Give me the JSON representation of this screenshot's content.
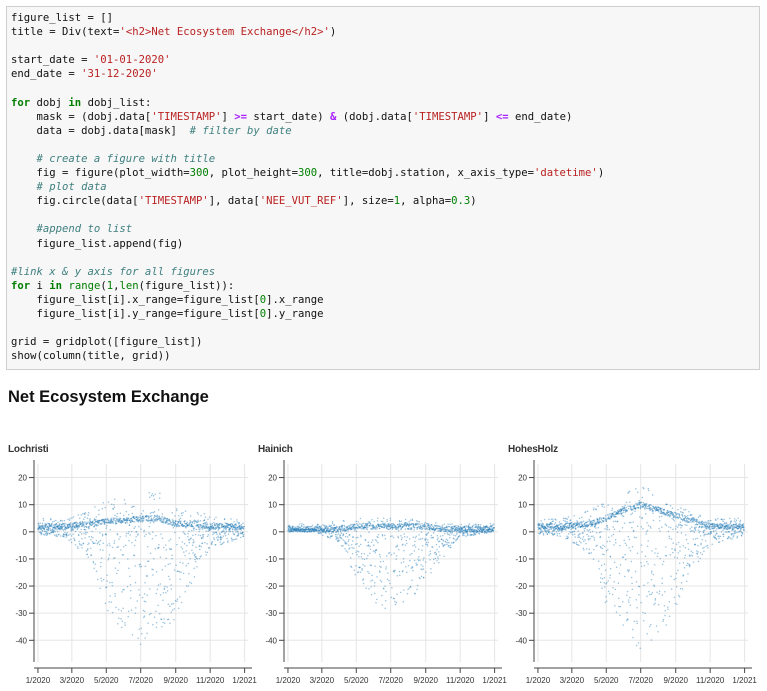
{
  "code_cell": {
    "lines": [
      [
        [
          "figure_list = []",
          ""
        ]
      ],
      [
        [
          "title = Div(text=",
          ""
        ],
        [
          "'<h2>Net Ecosystem Exchange</h2>'",
          "str"
        ],
        [
          ")",
          ""
        ]
      ],
      [
        [
          "",
          ""
        ]
      ],
      [
        [
          "start_date = ",
          ""
        ],
        [
          "'01-01-2020'",
          "str"
        ]
      ],
      [
        [
          "end_date = ",
          ""
        ],
        [
          "'31-12-2020'",
          "str"
        ]
      ],
      [
        [
          "",
          ""
        ]
      ],
      [
        [
          "for",
          "kw"
        ],
        [
          " dobj ",
          ""
        ],
        [
          "in",
          "kw"
        ],
        [
          " dobj_list:",
          ""
        ]
      ],
      [
        [
          "    mask = (dobj.data[",
          ""
        ],
        [
          "'TIMESTAMP'",
          "str"
        ],
        [
          "] ",
          ""
        ],
        [
          ">=",
          "op"
        ],
        [
          " start_date) ",
          ""
        ],
        [
          "&",
          "op"
        ],
        [
          " (dobj.data[",
          ""
        ],
        [
          "'TIMESTAMP'",
          "str"
        ],
        [
          "] ",
          ""
        ],
        [
          "<=",
          "op"
        ],
        [
          " end_date)",
          ""
        ]
      ],
      [
        [
          "    data = dobj.data[mask]  ",
          ""
        ],
        [
          "# filter by date",
          "cm"
        ]
      ],
      [
        [
          "",
          ""
        ]
      ],
      [
        [
          "    ",
          ""
        ],
        [
          "# create a figure with title",
          "cm"
        ]
      ],
      [
        [
          "    fig = figure(plot_width=",
          ""
        ],
        [
          "300",
          "num"
        ],
        [
          ", plot_height=",
          ""
        ],
        [
          "300",
          "num"
        ],
        [
          ", title=dobj.station, x_axis_type=",
          ""
        ],
        [
          "'datetime'",
          "str"
        ],
        [
          ")",
          ""
        ]
      ],
      [
        [
          "    ",
          ""
        ],
        [
          "# plot data",
          "cm"
        ]
      ],
      [
        [
          "    fig.circle(data[",
          ""
        ],
        [
          "'TIMESTAMP'",
          "str"
        ],
        [
          "], data[",
          ""
        ],
        [
          "'NEE_VUT_REF'",
          "str"
        ],
        [
          "], size=",
          ""
        ],
        [
          "1",
          "num"
        ],
        [
          ", alpha=",
          ""
        ],
        [
          "0.3",
          "num"
        ],
        [
          ")",
          ""
        ]
      ],
      [
        [
          "",
          ""
        ]
      ],
      [
        [
          "    ",
          ""
        ],
        [
          "#append to list",
          "cm"
        ]
      ],
      [
        [
          "    figure_list.append(fig)",
          ""
        ]
      ],
      [
        [
          "",
          ""
        ]
      ],
      [
        [
          "#link x & y axis for all figures",
          "cm"
        ]
      ],
      [
        [
          "for",
          "kw"
        ],
        [
          " i ",
          ""
        ],
        [
          "in",
          "kw"
        ],
        [
          " ",
          ""
        ],
        [
          "range",
          "num"
        ],
        [
          "(",
          ""
        ],
        [
          "1",
          "num"
        ],
        [
          ",",
          ""
        ],
        [
          "len",
          "num"
        ],
        [
          "(figure_list)):",
          ""
        ]
      ],
      [
        [
          "    figure_list[i].x_range=figure_list[",
          ""
        ],
        [
          "0",
          "num"
        ],
        [
          "].x_range",
          ""
        ]
      ],
      [
        [
          "    figure_list[i].y_range=figure_list[",
          ""
        ],
        [
          "0",
          "num"
        ],
        [
          "].y_range",
          ""
        ]
      ],
      [
        [
          "",
          ""
        ]
      ],
      [
        [
          "grid = gridplot([figure_list])",
          ""
        ]
      ],
      [
        [
          "show(column(title, grid))",
          ""
        ]
      ]
    ]
  },
  "output": {
    "title": "Net Ecosystem Exchange"
  },
  "theme": {
    "point_color": "#1f77b4",
    "grid_color": "#e5e5e5",
    "axis_color": "#444444"
  },
  "chart_data": [
    {
      "type": "scatter",
      "title": "Lochristi",
      "xlabel": "",
      "ylabel": "",
      "x_ticks": [
        "1/2020",
        "3/2020",
        "5/2020",
        "7/2020",
        "9/2020",
        "11/2020",
        "1/2021"
      ],
      "y_ticks": [
        20,
        10,
        0,
        -10,
        -20,
        -30,
        -40
      ],
      "xlim": [
        "2019-12-25",
        "2021-01-07"
      ],
      "ylim": [
        -48,
        25
      ],
      "grid": true,
      "profile": {
        "x": [
          "2020-01-01",
          "2020-02-15",
          "2020-04-01",
          "2020-05-01",
          "2020-06-01",
          "2020-07-01",
          "2020-08-01",
          "2020-09-01",
          "2020-10-01",
          "2020-11-01",
          "2020-12-31"
        ],
        "baseline": [
          2,
          2,
          3,
          4,
          4,
          5,
          5,
          3,
          3,
          2,
          2
        ],
        "max": [
          5,
          5,
          8,
          12,
          12,
          14,
          15,
          10,
          8,
          6,
          5
        ],
        "min": [
          -1,
          -2,
          -10,
          -30,
          -36,
          -42,
          -38,
          -32,
          -18,
          -6,
          -2
        ]
      }
    },
    {
      "type": "scatter",
      "title": "Hainich",
      "xlabel": "",
      "ylabel": "",
      "x_ticks": [
        "1/2020",
        "3/2020",
        "5/2020",
        "7/2020",
        "9/2020",
        "11/2020",
        "1/2021"
      ],
      "y_ticks": [
        20,
        10,
        0,
        -10,
        -20,
        -30,
        -40
      ],
      "xlim": [
        "2019-12-25",
        "2021-01-07"
      ],
      "ylim": [
        -48,
        25
      ],
      "grid": true,
      "profile": {
        "x": [
          "2020-01-01",
          "2020-02-15",
          "2020-04-01",
          "2020-05-01",
          "2020-06-01",
          "2020-07-01",
          "2020-08-01",
          "2020-09-01",
          "2020-10-01",
          "2020-11-01",
          "2020-12-31"
        ],
        "baseline": [
          1,
          1,
          1,
          2,
          2,
          2,
          2,
          2,
          1,
          1,
          1
        ],
        "max": [
          3,
          3,
          4,
          5,
          5,
          5,
          5,
          4,
          3,
          3,
          3
        ],
        "min": [
          0,
          0,
          -4,
          -18,
          -26,
          -30,
          -25,
          -20,
          -10,
          -2,
          0
        ]
      }
    },
    {
      "type": "scatter",
      "title": "HohesHolz",
      "xlabel": "",
      "ylabel": "",
      "x_ticks": [
        "1/2020",
        "3/2020",
        "5/2020",
        "7/2020",
        "9/2020",
        "11/2020",
        "1/2021"
      ],
      "y_ticks": [
        20,
        10,
        0,
        -10,
        -20,
        -30,
        -40
      ],
      "xlim": [
        "2019-12-25",
        "2021-01-07"
      ],
      "ylim": [
        -48,
        25
      ],
      "grid": true,
      "profile": {
        "x": [
          "2020-01-01",
          "2020-02-15",
          "2020-04-01",
          "2020-05-01",
          "2020-06-01",
          "2020-07-01",
          "2020-08-01",
          "2020-09-01",
          "2020-10-01",
          "2020-11-01",
          "2020-12-31"
        ],
        "baseline": [
          2,
          2,
          3,
          5,
          8,
          10,
          8,
          6,
          4,
          2,
          2
        ],
        "max": [
          5,
          5,
          8,
          12,
          15,
          18,
          14,
          10,
          8,
          5,
          5
        ],
        "min": [
          -1,
          -2,
          -8,
          -28,
          -36,
          -44,
          -38,
          -30,
          -15,
          -5,
          -2
        ]
      }
    }
  ]
}
